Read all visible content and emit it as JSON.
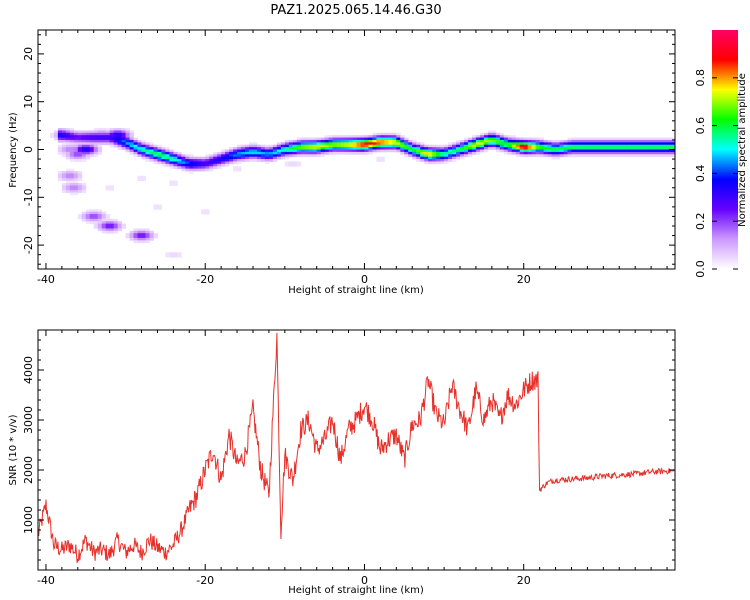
{
  "chart_data": [
    {
      "type": "heatmap",
      "title": "PAZ1.2025.065.14.46.G30",
      "xlabel": "Height of straight line (km)",
      "ylabel": "Frequency (Hz)",
      "xlim": [
        -41,
        39
      ],
      "ylim": [
        -25,
        25
      ],
      "xticks": [
        -40,
        -20,
        0,
        20
      ],
      "yticks": [
        -20,
        -10,
        0,
        10,
        20
      ],
      "colorbar": {
        "label": "Normalized spectral amplitude",
        "range": [
          0,
          1
        ],
        "ticks": [
          "0.0",
          "0.2",
          "0.4",
          "0.6",
          "0.8"
        ],
        "colors": [
          "#ffffff",
          "#cc99ff",
          "#6600ff",
          "#0000ff",
          "#00ffff",
          "#00ff00",
          "#ffff00",
          "#ff0000",
          "#ff0066"
        ]
      },
      "ridge": {
        "x": [
          -38,
          -36,
          -34,
          -32,
          -30,
          -28,
          -26,
          -24,
          -22,
          -20,
          -18,
          -16,
          -14,
          -12,
          -10,
          -8,
          -6,
          -4,
          -2,
          0,
          2,
          4,
          6,
          8,
          10,
          12,
          14,
          16,
          18,
          20,
          22,
          24,
          26,
          28,
          30,
          32,
          34,
          36,
          38
        ],
        "y": [
          3,
          2.5,
          2.5,
          2.5,
          1.5,
          0,
          -1,
          -2,
          -3,
          -3,
          -2,
          -1,
          -0.5,
          -1,
          0,
          0.5,
          0.5,
          1,
          1,
          1,
          1.5,
          1.5,
          0,
          -1,
          -1,
          0,
          1,
          2,
          1,
          0.5,
          0.5,
          0,
          0.5,
          0.5,
          0.5,
          0.5,
          0.5,
          0.5,
          0.5
        ],
        "amplitude": [
          0.35,
          0.25,
          0.3,
          0.3,
          0.45,
          0.55,
          0.6,
          0.55,
          0.4,
          0.3,
          0.35,
          0.45,
          0.5,
          0.45,
          0.55,
          0.7,
          0.75,
          0.7,
          0.75,
          0.9,
          0.85,
          0.75,
          0.6,
          0.8,
          0.55,
          0.6,
          0.75,
          0.7,
          0.6,
          0.95,
          0.65,
          0.6,
          0.6,
          0.6,
          0.6,
          0.6,
          0.6,
          0.6,
          0.6
        ]
      },
      "blobs": [
        {
          "x": -37.5,
          "y": 3,
          "amp": 0.2
        },
        {
          "x": -37,
          "y": 0,
          "amp": 0.15
        },
        {
          "x": -36,
          "y": -1,
          "amp": 0.2
        },
        {
          "x": -35,
          "y": 0,
          "amp": 0.35
        },
        {
          "x": -33,
          "y": 3,
          "amp": 0.2
        },
        {
          "x": -31,
          "y": 3,
          "amp": 0.35
        },
        {
          "x": -37,
          "y": -5.5,
          "amp": 0.15
        },
        {
          "x": -36.5,
          "y": -8,
          "amp": 0.15
        },
        {
          "x": -34,
          "y": -14,
          "amp": 0.2
        },
        {
          "x": -32,
          "y": -16,
          "amp": 0.25
        },
        {
          "x": -28,
          "y": -18,
          "amp": 0.25
        },
        {
          "x": -24,
          "y": -22,
          "amp": 0.05
        },
        {
          "x": -32,
          "y": -8,
          "amp": 0.04
        },
        {
          "x": -28,
          "y": -6,
          "amp": 0.04
        },
        {
          "x": -26,
          "y": -12,
          "amp": 0.04
        },
        {
          "x": -24,
          "y": -7,
          "amp": 0.04
        },
        {
          "x": -20,
          "y": -13,
          "amp": 0.04
        },
        {
          "x": -16,
          "y": -4,
          "amp": 0.04
        },
        {
          "x": -14,
          "y": 1,
          "amp": 0.04
        },
        {
          "x": -9,
          "y": -3,
          "amp": 0.05
        },
        {
          "x": -7,
          "y": 2,
          "amp": 0.04
        },
        {
          "x": 2,
          "y": -2,
          "amp": 0.04
        }
      ]
    },
    {
      "type": "line",
      "xlabel": "Height of straight line (km)",
      "ylabel": "SNR (10 * v/v)",
      "xlim": [
        -41,
        39
      ],
      "ylim": [
        0,
        4800
      ],
      "xticks": [
        -40,
        -20,
        0,
        20
      ],
      "yticks": [
        1000,
        2000,
        3000,
        4000
      ],
      "line_color": "#e8302a",
      "x": [
        -41,
        -40,
        -39,
        -38,
        -37,
        -36,
        -35,
        -34,
        -33,
        -32,
        -31,
        -30,
        -29,
        -28,
        -27,
        -26,
        -25,
        -24,
        -23,
        -22,
        -21,
        -20,
        -19,
        -18,
        -17,
        -16,
        -15,
        -14,
        -13,
        -12,
        -11,
        -10.5,
        -10,
        -9,
        -8,
        -7,
        -6,
        -5,
        -4,
        -3,
        -2,
        -1,
        0,
        1,
        2,
        3,
        4,
        5,
        6,
        7,
        8,
        9,
        10,
        11,
        12,
        13,
        14,
        15,
        16,
        17,
        18,
        19,
        20,
        21,
        21.8,
        22,
        23,
        24,
        26,
        28,
        30,
        32,
        34,
        36,
        38,
        39
      ],
      "y": [
        700,
        1300,
        500,
        400,
        500,
        300,
        600,
        350,
        400,
        300,
        600,
        350,
        500,
        350,
        600,
        450,
        350,
        500,
        800,
        1200,
        1500,
        2000,
        2400,
        1800,
        2700,
        2100,
        2300,
        3200,
        2000,
        1500,
        4700,
        800,
        2300,
        1800,
        2800,
        3000,
        2400,
        2600,
        3000,
        2200,
        2800,
        3000,
        3300,
        3000,
        2400,
        2600,
        2700,
        2200,
        2900,
        3000,
        3800,
        3100,
        2900,
        3700,
        3200,
        2800,
        3600,
        3000,
        3400,
        3000,
        3500,
        3300,
        3600,
        3800,
        3800,
        1600,
        1750,
        1800,
        1820,
        1840,
        1880,
        1900,
        1920,
        1960,
        1980,
        1980
      ]
    }
  ]
}
